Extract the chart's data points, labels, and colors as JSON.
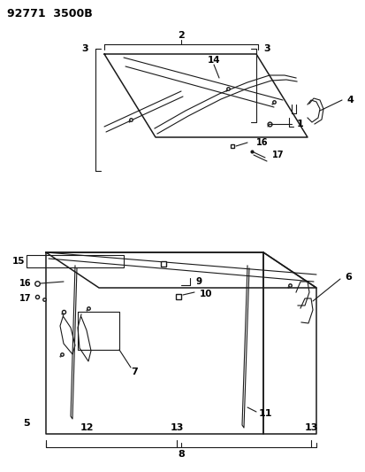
{
  "title": "92771  3500B",
  "bg_color": "#ffffff",
  "line_color": "#1a1a1a",
  "fig_width": 4.14,
  "fig_height": 5.33,
  "dpi": 100
}
